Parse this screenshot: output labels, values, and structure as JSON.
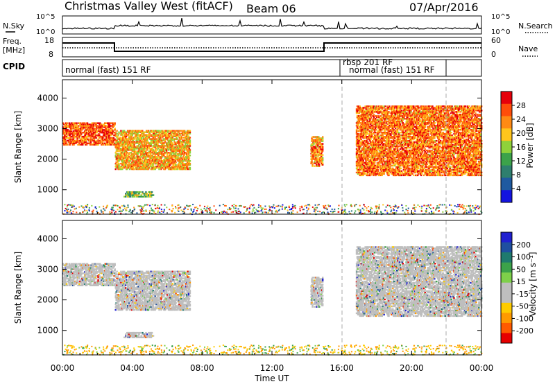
{
  "header": {
    "title": "Christmas Valley West (fitACF)",
    "beam": "Beam 06",
    "date": "07/Apr/2016"
  },
  "panels": {
    "nsky": {
      "left_label": "N.Sky",
      "right_label": "N.Search",
      "left_ticks": [
        "10^5",
        "10^0"
      ],
      "right_ticks": [
        "10^5",
        "10^0"
      ]
    },
    "freq": {
      "left_label_line1": "Freq.",
      "left_label_line2": "[MHz]",
      "right_label": "Nave",
      "left_ticks": [
        "18",
        "8"
      ],
      "right_ticks": [
        "60",
        "0"
      ]
    },
    "cpid": {
      "label": "CPID",
      "segments": [
        "normal (fast) 151 RF",
        "rbsp 201 RF",
        "normal (fast) 151 RF"
      ]
    }
  },
  "colors": {
    "power": [
      "#1414e0",
      "#1f5aa0",
      "#2e7f6e",
      "#3ca24a",
      "#8fd23a",
      "#ffc51c",
      "#ff8a14",
      "#ff4d0a",
      "#e6000a"
    ],
    "velocity": [
      "#e60000",
      "#ff5a00",
      "#ff9a00",
      "#ffcc00",
      "#bebebe",
      "#bebebe",
      "#7ed04a",
      "#3ca24a",
      "#1f7a6e",
      "#1f4fa0",
      "#2020d0"
    ]
  },
  "chart_data": [
    {
      "type": "heatmap",
      "name": "power",
      "xlabel": "",
      "ylabel": "Slant Range [km]",
      "x_ticks": [
        "00:00",
        "04:00",
        "08:00",
        "12:00",
        "16:00",
        "20:00",
        "00:00"
      ],
      "y_ticks": [
        "1000",
        "2000",
        "3000",
        "4000"
      ],
      "ylim": [
        200,
        4600
      ],
      "xlim_hours": [
        0,
        24
      ],
      "colorbar_label": "Power [dB]",
      "colorbar_ticks": [
        "4",
        "8",
        "12",
        "16",
        "20",
        "24",
        "28"
      ],
      "echo_regions": [
        {
          "t0": 0.0,
          "t1": 3.0,
          "r0": 2500,
          "r1": 3250,
          "level": 0.85
        },
        {
          "t0": 3.0,
          "t1": 7.3,
          "r0": 1700,
          "r1": 3000,
          "level": 0.7
        },
        {
          "t0": 3.5,
          "t1": 5.2,
          "r0": 800,
          "r1": 1000,
          "level": 0.45
        },
        {
          "t0": 14.2,
          "t1": 14.9,
          "r0": 1800,
          "r1": 2800,
          "level": 0.75
        },
        {
          "t0": 16.8,
          "t1": 24.0,
          "r0": 1500,
          "r1": 3800,
          "level": 0.8
        }
      ]
    },
    {
      "type": "heatmap",
      "name": "velocity",
      "xlabel": "Time UT",
      "ylabel": "Slant Range [km]",
      "x_ticks": [
        "00:00",
        "04:00",
        "08:00",
        "12:00",
        "16:00",
        "20:00",
        "00:00"
      ],
      "y_ticks": [
        "1000",
        "2000",
        "3000",
        "4000"
      ],
      "ylim": [
        200,
        4600
      ],
      "xlim_hours": [
        0,
        24
      ],
      "colorbar_label": "Velocity [m s⁻¹]",
      "colorbar_ticks": [
        "200",
        "100",
        "50",
        "15",
        "-15",
        "-50",
        "-100",
        "-200"
      ]
    }
  ]
}
